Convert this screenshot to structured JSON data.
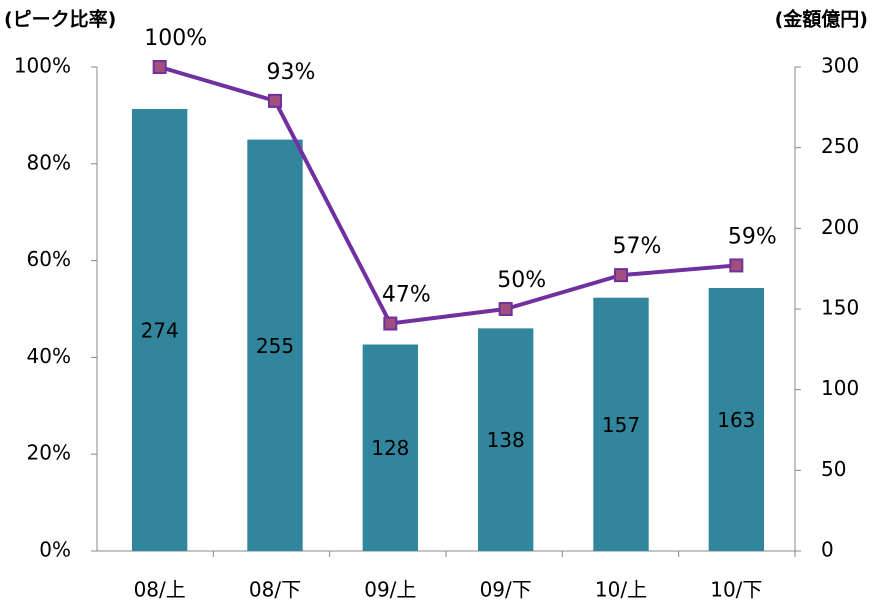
{
  "chart_data": {
    "type": "combo",
    "ylabel": "(ピーク比率)",
    "y2label": "(金額億円)",
    "categories": [
      "08/上",
      "08/下",
      "09/上",
      "09/下",
      "10/上",
      "10/下"
    ],
    "ylim": [
      0,
      100
    ],
    "yticks": [
      {
        "value": 0,
        "label": "0%"
      },
      {
        "value": 20,
        "label": "20%"
      },
      {
        "value": 40,
        "label": "40%"
      },
      {
        "value": 60,
        "label": "60%"
      },
      {
        "value": 80,
        "label": "80%"
      },
      {
        "value": 100,
        "label": "100%"
      }
    ],
    "y2lim": [
      0,
      300
    ],
    "y2ticks": [
      0,
      50,
      100,
      150,
      200,
      250,
      300
    ],
    "series": [
      {
        "type": "bar",
        "axis": "y2",
        "color": "#31859c",
        "values": [
          274,
          255,
          128,
          138,
          157,
          163
        ]
      },
      {
        "type": "line",
        "axis": "y",
        "color": "#7030a0",
        "marker_color": "#a0507a",
        "values": [
          100,
          93,
          47,
          50,
          57,
          59
        ],
        "value_labels": [
          "100%",
          "93%",
          "47%",
          "50%",
          "57%",
          "59%"
        ]
      }
    ]
  }
}
